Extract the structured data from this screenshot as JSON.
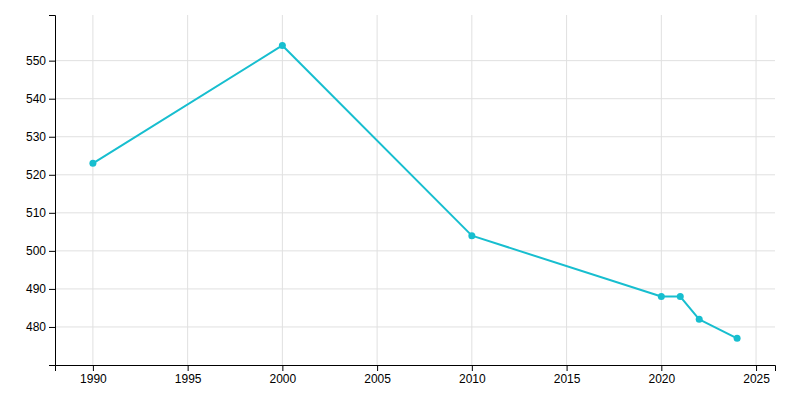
{
  "chart_data": {
    "type": "line",
    "x": [
      1990,
      2000,
      2010,
      2020,
      2021,
      2022,
      2024
    ],
    "values": [
      523,
      554,
      504,
      488,
      488,
      482,
      477
    ],
    "color": "#17becf",
    "marker": "circle",
    "xlim": [
      1988,
      2026
    ],
    "ylim": [
      470,
      562
    ],
    "xticks": [
      1990,
      1995,
      2000,
      2005,
      2010,
      2015,
      2020,
      2025
    ],
    "yticks": [
      480,
      490,
      500,
      510,
      520,
      530,
      540,
      550
    ],
    "grid": true
  }
}
